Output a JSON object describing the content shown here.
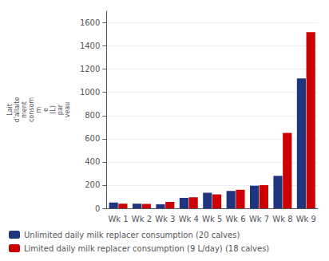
{
  "chart_data": {
    "type": "bar",
    "ylabel": "Lait\nd'allaite\nment\nconsom\nm\ne\n(L)\npar\nveau",
    "categories": [
      "Wk 1",
      "Wk 2",
      "Wk 3",
      "Wk 4",
      "Wk 5",
      "Wk 6",
      "Wk 7",
      "Wk 8",
      "Wk 9"
    ],
    "series": [
      {
        "name": "Unlimited daily milk replacer consumption (20 calves)",
        "color": "#1F3580",
        "values": [
          50,
          40,
          35,
          90,
          135,
          150,
          195,
          280,
          1120
        ]
      },
      {
        "name": "Limited daily milk replacer consumption (9 L/day) (18 calves)",
        "color": "#CC0000",
        "values": [
          40,
          38,
          55,
          95,
          120,
          160,
          200,
          650,
          1520
        ]
      }
    ],
    "ylim": [
      0,
      1700
    ],
    "yticks": [
      0,
      200,
      400,
      600,
      800,
      1000,
      1200,
      1400,
      1600
    ],
    "grid": true,
    "legend": "bottom left"
  }
}
